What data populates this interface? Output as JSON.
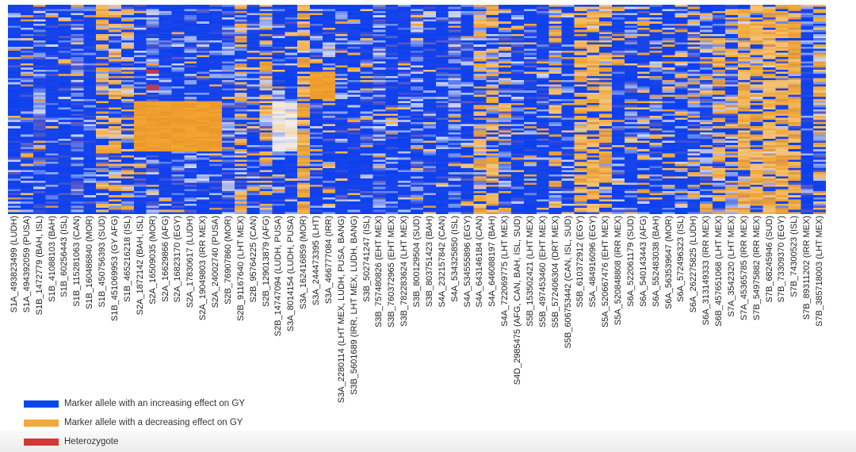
{
  "chart_data": {
    "type": "heatmap",
    "title": "",
    "columns": [
      "S1A_493823499 (LUDH)",
      "S1A_494392059 (PUSA)",
      "S1B_1472779 (BAH, ISL)",
      "S1B_41088103 (BAH)",
      "S1B_60256443 (ISL)",
      "S1B_115281063 (CAN)",
      "S1B_160486840 (MOR)",
      "S1B_450756393 (SUD)",
      "S1B_451069953 (GY AFG)",
      "S1B_465216218 (ISL)",
      "S2A_1872142 (BAH, ISL)",
      "S2A_16509035 (MOR)",
      "S2A_16629866 (AFG)",
      "S2A_16823170 (EGY)",
      "S2A_17830617 (LUDH)",
      "S2A_19049803 (IRR MEX)",
      "S2A_24002740 (PUSA)",
      "S2B_76907860 (MOR)",
      "S2B_91167640 (LHT MEX)",
      "S2B_95764225 (CAN)",
      "S2B_129013879 (AFG)",
      "S2B_14747094 (LUDH, PUSA)",
      "S3A_8014154 (LUDH, PUSA)",
      "S3A_162416859 (MOR)",
      "S3A_244473395 (LHT)",
      "S3A_466777084 (IRR)",
      "S3A_2280114 (LHT MEX, LUDH, PUSA, BANG)",
      "S3B_5601689 (IRR, LHT MEX, LUDH, BANG)",
      "S3B_502741247 (ISL)",
      "S3B_757480826 (EHT MEX)",
      "S3B_760372965 (EHT MEX)",
      "S3B_782283624 (LHT MEX)",
      "S3B_800129504 (SUD)",
      "S3B_803751423 (BAH)",
      "S4A_232157842 (CAN)",
      "S4A_534325850 (ISL)",
      "S4A_534555896 (EGY)",
      "S4A_643146184 (CAN)",
      "S4A_646088197 (BAH)",
      "S4A_722069775 (LHT MEX)",
      "S4D_2985475 (AFG, CAN, BAH, ISL, SUD)",
      "S5B_153502421 (LHT MEX)",
      "S5B_497453460 (EHT MEX)",
      "S5B_572406304 (DRT MEX)",
      "S5B_606753442 (CAN, ISL, SUD)",
      "S5B_610372912 (EGY)",
      "S5A_484916096 (EGY)",
      "S5A_520667476 (EHT MEX)",
      "S5A_520848808 (IRR MEX)",
      "S6A_522061179 (SUD)",
      "S6A_540143443 (AFG)",
      "S6A_552483038 (BAH)",
      "S6A_563539647 (MOR)",
      "S6A_572496323 (ISL)",
      "S6A_262275825 (LUDH)",
      "S6A_313149333 (IRR MEX)",
      "S6B_457651068 (LHT MEX)",
      "S7A_3542320 (LHT MEX)",
      "S7A_45365785 (IRR MEX)",
      "S7B_54975882 (IRR MEX)",
      "S7B_68245946 (SUD)",
      "S7B_73309370 (EGY)",
      "S7B_74300523 (ISL)",
      "S7B_89311202 (IRR MEX)",
      "S7B_385718003 (LHT MEX)"
    ],
    "row_count": 100,
    "decreasing_allele_fraction_by_column": [
      0.08,
      0.08,
      0.05,
      0.02,
      0.02,
      0.02,
      0.02,
      0.4,
      0.45,
      0.4,
      0.05,
      0.05,
      0.05,
      0.02,
      0.02,
      0.02,
      0.05,
      0.03,
      0.4,
      0.1,
      0.45,
      0.03,
      0.03,
      0.7,
      0.1,
      0.1,
      0.1,
      0.1,
      0.05,
      0.03,
      0.03,
      0.03,
      0.03,
      0.05,
      0.02,
      0.05,
      0.02,
      0.5,
      0.5,
      0.3,
      0.1,
      0.1,
      0.1,
      0.25,
      0.1,
      0.7,
      0.7,
      0.7,
      0.1,
      0.1,
      0.2,
      0.2,
      0.2,
      0.2,
      0.25,
      0.25,
      0.35,
      0.35,
      0.8,
      0.75,
      0.75,
      0.8,
      0.8,
      0.02,
      0.35
    ],
    "blocks": [
      {
        "allele": "decreasing",
        "columns": [
          10,
          16
        ],
        "rows": [
          46,
          69
        ]
      },
      {
        "allele": "mixed-light",
        "columns": [
          21,
          22
        ],
        "rows": [
          46,
          69
        ]
      },
      {
        "allele": "decreasing",
        "columns": [
          24,
          25
        ],
        "rows": [
          32,
          44
        ]
      },
      {
        "allele": "heterozygote",
        "columns": [
          11,
          11
        ],
        "rows": [
          30,
          40
        ]
      }
    ],
    "colors": {
      "increasing": "#0a3ff0",
      "decreasing": "#f2a530",
      "heterozygote": "#c8343a",
      "neutral": "#f4f2f0"
    },
    "legend": {
      "placement": "bottom-left",
      "items": [
        {
          "label": "Marker allele with an increasing effect on GY",
          "color": "#0a46ee"
        },
        {
          "label": "Marker allele with a decreasing effect on GY",
          "color": "#f2a93a"
        },
        {
          "label": "Heterozygote",
          "color": "#cf3a36"
        }
      ]
    }
  }
}
